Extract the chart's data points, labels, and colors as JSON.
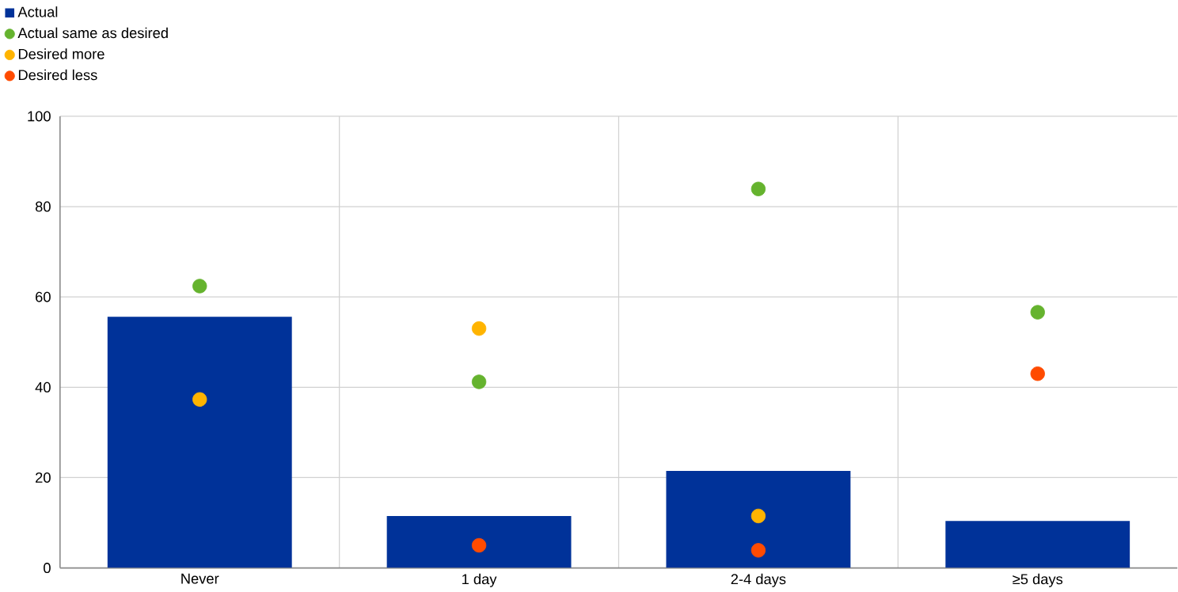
{
  "chart_data": {
    "type": "bar",
    "categories": [
      "Never",
      "1 day",
      "2-4 days",
      "≥5 days"
    ],
    "series": [
      {
        "name": "Actual",
        "color": "#003299",
        "values": [
          55.6,
          11.5,
          21.5,
          10.4
        ]
      },
      {
        "name": "Actual same as desired",
        "type": "scatter",
        "color": "#65b32e",
        "x": [
          "Never",
          "1 day",
          "2-4 days",
          "≥5 days"
        ],
        "values": [
          62.4,
          41.2,
          83.9,
          56.6
        ]
      },
      {
        "name": "Desired more",
        "type": "scatter",
        "color": "#ffb400",
        "x": [
          "Never",
          "1 day",
          "2-4 days",
          "≥5 days"
        ],
        "values": [
          37.3,
          53,
          11.5,
          null
        ]
      },
      {
        "name": "Desired less",
        "type": "scatter",
        "color": "#ff4b00",
        "x": [
          "Never",
          "1 day",
          "2-4 days",
          "≥5 days"
        ],
        "values": [
          null,
          5,
          3.9,
          43
        ]
      }
    ],
    "ylim": [
      0,
      100
    ],
    "yticks": [
      0,
      20,
      40,
      60,
      80,
      100
    ],
    "grid": true,
    "legend": "top left",
    "marker": "circle"
  }
}
